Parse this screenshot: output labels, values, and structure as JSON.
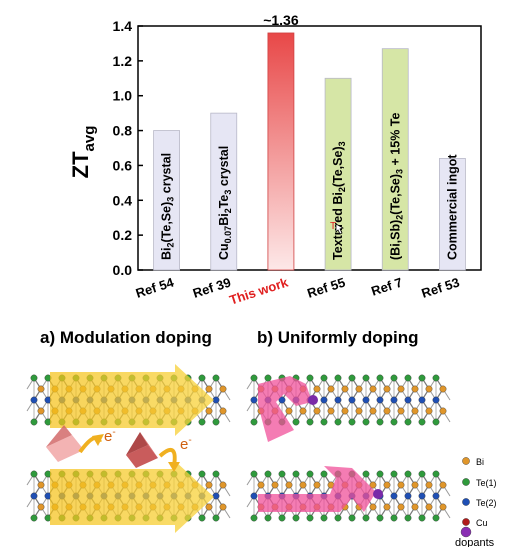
{
  "chart_data": {
    "type": "bar",
    "ylabel_main": "ZT",
    "ylabel_sub": "avg",
    "ylim": [
      0.0,
      1.4
    ],
    "yticks": [
      "0.0",
      "0.2",
      "0.4",
      "0.6",
      "0.8",
      "1.0",
      "1.2",
      "1.4"
    ],
    "categories": [
      "Ref 54",
      "Ref 39",
      "This work",
      "Ref 55",
      "Ref 7",
      "Ref 53"
    ],
    "values": [
      0.8,
      0.9,
      1.36,
      1.1,
      1.27,
      0.64
    ],
    "bar_labels": [
      {
        "main": "Bi",
        "parts": [
          [
            "Bi",
            ""
          ],
          [
            "2",
            "sub"
          ],
          [
            "(Te,Se)",
            ""
          ],
          [
            "3",
            "sub"
          ],
          [
            " crystal",
            ""
          ]
        ]
      },
      {
        "main": "Cu",
        "parts": [
          [
            "Cu",
            ""
          ],
          [
            "0.07",
            "sub"
          ],
          [
            "Bi",
            ""
          ],
          [
            "2",
            "sub"
          ],
          [
            "Te",
            ""
          ],
          [
            "3",
            "sub"
          ],
          [
            " crystal",
            ""
          ]
        ]
      },
      {
        "main": "",
        "parts": []
      },
      {
        "main": "Textured",
        "parts": [
          [
            "Textured Bi",
            ""
          ],
          [
            "2",
            "sub"
          ],
          [
            "(Te,Se)",
            ""
          ],
          [
            "3",
            "sub"
          ]
        ]
      },
      {
        "main": "BiSb",
        "parts": [
          [
            "(Bi,Sb)",
            ""
          ],
          [
            "2",
            "sub"
          ],
          [
            "(Te,Se)",
            ""
          ],
          [
            "3",
            "sub"
          ],
          [
            " + 15% Te",
            ""
          ]
        ]
      },
      {
        "main": "Commercial",
        "parts": [
          [
            "Commercial ingot",
            ""
          ]
        ]
      }
    ],
    "bar_colors": [
      "#e6e6f4",
      "#e6e6f4",
      "gradient-red",
      "#d6e6a6",
      "#d6e6a6",
      "#e6e6f4"
    ],
    "annotation": "~1.36",
    "highlight_color": "#e02020"
  },
  "panels": {
    "a_title": "a)  Modulation doping",
    "b_title": "b)  Uniformly  doping",
    "electron_label": "e",
    "electron_sup": "-"
  },
  "legend": {
    "items": [
      {
        "label": "Bi",
        "color": "#e0962a"
      },
      {
        "label": "Te(1)",
        "color": "#2f9a3c"
      },
      {
        "label": "Te(2)",
        "color": "#1f4fb4"
      },
      {
        "label": "Cu",
        "color": "#b01c1c"
      },
      {
        "label": "dopants",
        "color": "#8a2fb3"
      }
    ]
  }
}
